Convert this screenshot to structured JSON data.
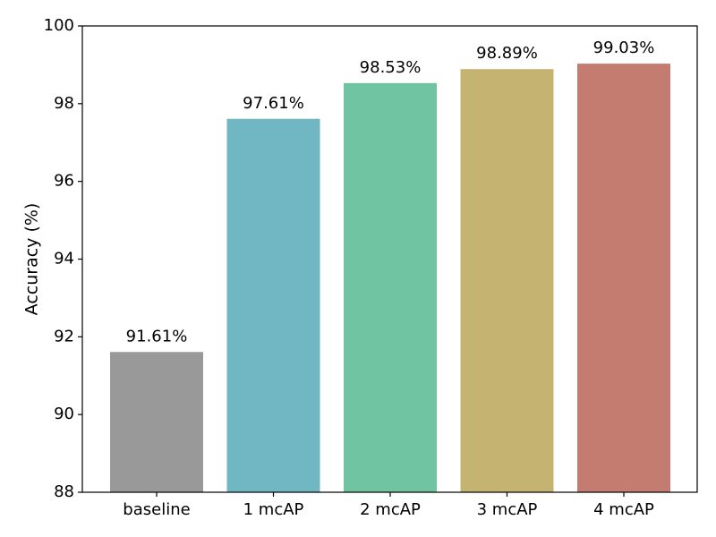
{
  "chart_data": {
    "type": "bar",
    "title": "",
    "xlabel": "",
    "ylabel": "Accuracy (%)",
    "ylim": [
      88,
      100
    ],
    "yticks": [
      88,
      90,
      92,
      94,
      96,
      98,
      100
    ],
    "grid": false,
    "categories": [
      "baseline",
      "1 mcAP",
      "2 mcAP",
      "3 mcAP",
      "4 mcAP"
    ],
    "values": [
      91.61,
      97.61,
      98.53,
      98.89,
      99.03
    ],
    "data_labels": [
      "91.61%",
      "97.61%",
      "98.53%",
      "98.89%",
      "99.03%"
    ],
    "colors": [
      "#999999",
      "#70b7c3",
      "#70c4a2",
      "#c5b471",
      "#c47c70"
    ]
  }
}
